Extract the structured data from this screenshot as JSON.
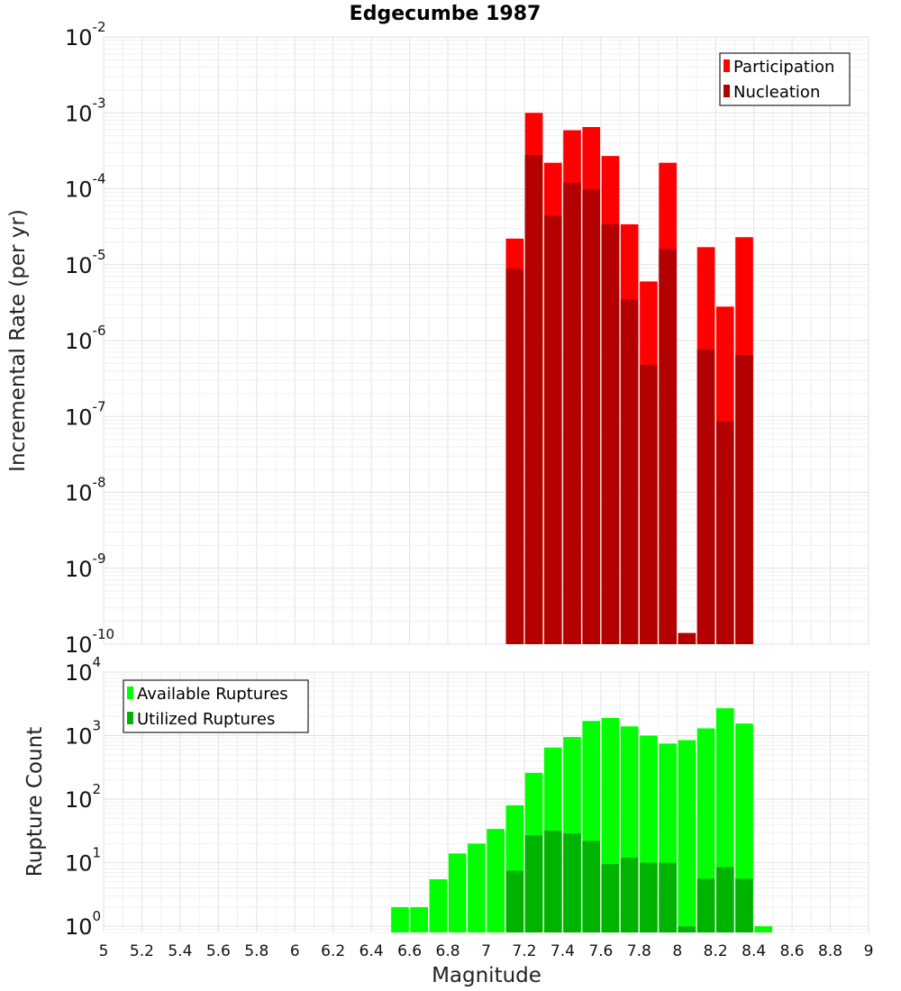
{
  "chart_data": [
    {
      "type": "bar",
      "title": "Edgecumbe 1987",
      "xlabel": "",
      "ylabel": "Incremental Rate (per yr)",
      "yscale": "log",
      "ylim": [
        1e-10,
        0.01
      ],
      "xlim": [
        5,
        9
      ],
      "grid": true,
      "legend_position": "top-right",
      "bar_width": 0.1,
      "x": [
        7.15,
        7.25,
        7.35,
        7.45,
        7.55,
        7.65,
        7.75,
        7.85,
        7.95,
        8.05,
        8.15,
        8.25,
        8.35
      ],
      "series": [
        {
          "name": "Participation",
          "color": "#ff0000",
          "values": [
            2.2e-05,
            0.001,
            0.00022,
            0.00059,
            0.00065,
            0.00027,
            3.4e-05,
            6e-06,
            0.00022,
            1.4e-10,
            1.7e-05,
            2.8e-06,
            2.3e-05
          ]
        },
        {
          "name": "Nucleation",
          "color": "#b30000",
          "values": [
            8.8e-06,
            0.00028,
            4.4e-05,
            0.00012,
            9.8e-05,
            3.4e-05,
            3.5e-06,
            4.8e-07,
            1.6e-05,
            1.4e-10,
            7.6e-07,
            8.6e-08,
            6.4e-07
          ]
        }
      ],
      "y_ticks": [
        {
          "base": "10",
          "exp": "-2"
        },
        {
          "base": "10",
          "exp": "-3"
        },
        {
          "base": "10",
          "exp": "-4"
        },
        {
          "base": "10",
          "exp": "-5"
        },
        {
          "base": "10",
          "exp": "-6"
        },
        {
          "base": "10",
          "exp": "-7"
        },
        {
          "base": "10",
          "exp": "-8"
        },
        {
          "base": "10",
          "exp": "-9"
        },
        {
          "base": "10",
          "exp": "-10"
        }
      ]
    },
    {
      "type": "bar",
      "title": "",
      "xlabel": "Magnitude",
      "ylabel": "Rupture Count",
      "yscale": "log",
      "ylim": [
        0.8,
        10000
      ],
      "xlim": [
        5,
        9
      ],
      "grid": true,
      "legend_position": "top-left",
      "bar_width": 0.1,
      "x": [
        6.55,
        6.65,
        6.75,
        6.85,
        6.95,
        7.05,
        7.15,
        7.25,
        7.35,
        7.45,
        7.55,
        7.65,
        7.75,
        7.85,
        7.95,
        8.05,
        8.15,
        8.25,
        8.35,
        8.45
      ],
      "series": [
        {
          "name": "Available Ruptures",
          "color": "#00ff00",
          "values": [
            2,
            2,
            5.5,
            14,
            20,
            34,
            80,
            260,
            650,
            950,
            1700,
            1900,
            1400,
            1000,
            750,
            850,
            1300,
            2700,
            1550,
            1
          ]
        },
        {
          "name": "Utilized Ruptures",
          "color": "#00b300",
          "values": [
            0,
            0,
            0,
            0,
            0,
            0,
            7.5,
            27,
            32,
            29,
            22,
            9.5,
            12,
            10,
            10,
            1,
            5.6,
            8.5,
            5.6,
            0
          ]
        }
      ],
      "x_ticks": [
        "5",
        "5.2",
        "5.4",
        "5.6",
        "5.8",
        "6",
        "6.2",
        "6.4",
        "6.6",
        "6.8",
        "7",
        "7.2",
        "7.4",
        "7.6",
        "7.8",
        "8",
        "8.2",
        "8.4",
        "8.6",
        "8.8",
        "9"
      ],
      "y_ticks": [
        {
          "base": "10",
          "exp": "4"
        },
        {
          "base": "10",
          "exp": "3"
        },
        {
          "base": "10",
          "exp": "2"
        },
        {
          "base": "10",
          "exp": "1"
        },
        {
          "base": "10",
          "exp": "0"
        }
      ]
    }
  ]
}
